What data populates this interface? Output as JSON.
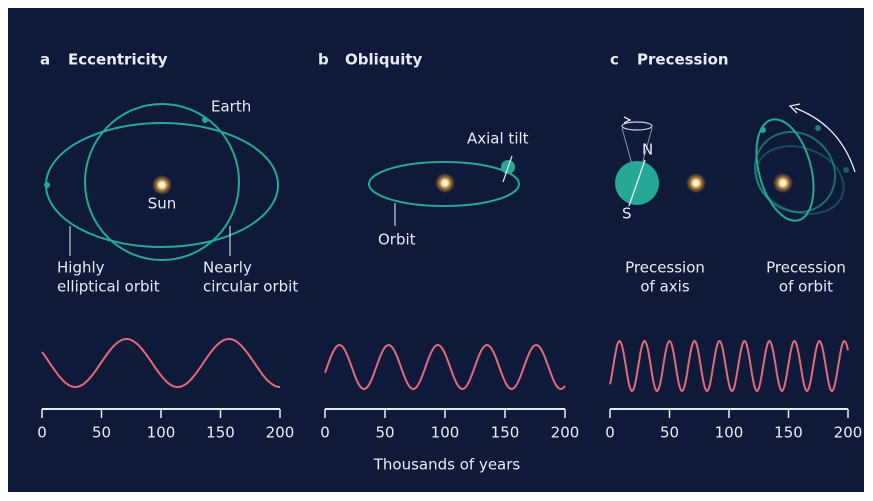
{
  "panels": [
    {
      "letter": "a",
      "title": "Eccentricity",
      "earth": "Earth",
      "sun": "Sun",
      "elliptical": [
        "Highly",
        "elliptical orbit"
      ],
      "circular": [
        "Nearly",
        "circular orbit"
      ]
    },
    {
      "letter": "b",
      "title": "Obliquity",
      "tilt": "Axial tilt",
      "orbit": "Orbit"
    },
    {
      "letter": "c",
      "title": "Precession",
      "north": "N",
      "south": "S",
      "axis_label": [
        "Precession",
        "of axis"
      ],
      "orbit_label": [
        "Precession",
        "of orbit"
      ]
    }
  ],
  "axis": {
    "xlim": [
      0,
      200
    ],
    "xticks": [
      0,
      50,
      100,
      150,
      200
    ],
    "label": "Thousands of years"
  }
}
